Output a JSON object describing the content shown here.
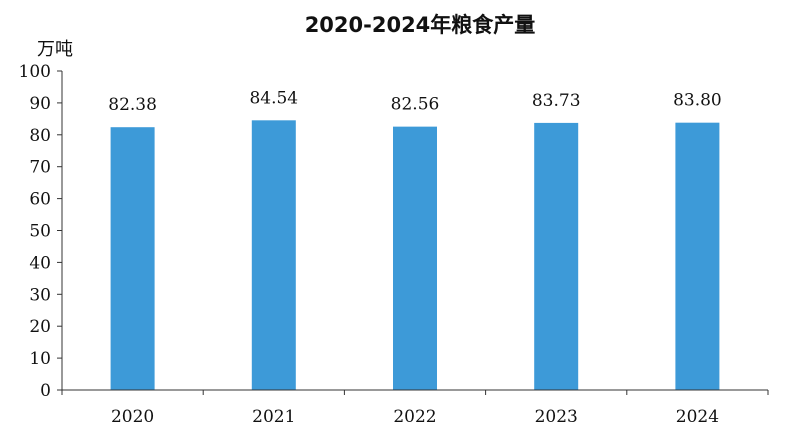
{
  "chart_data": {
    "type": "bar",
    "title": "2020-2024年粮食产量",
    "ylabel": "万吨",
    "xlabel": "",
    "categories": [
      "2020",
      "2021",
      "2022",
      "2023",
      "2024"
    ],
    "values": [
      82.38,
      84.54,
      82.56,
      83.73,
      83.8
    ],
    "data_labels": [
      "82.38",
      "84.54",
      "82.56",
      "83.73",
      "83.80"
    ],
    "ylim": [
      0,
      100
    ],
    "yticks": [
      "0",
      "10",
      "20",
      "30",
      "40",
      "50",
      "60",
      "70",
      "80",
      "90",
      "100"
    ],
    "bar_color": "#3d9ad8",
    "grid": false,
    "legend": "none"
  }
}
